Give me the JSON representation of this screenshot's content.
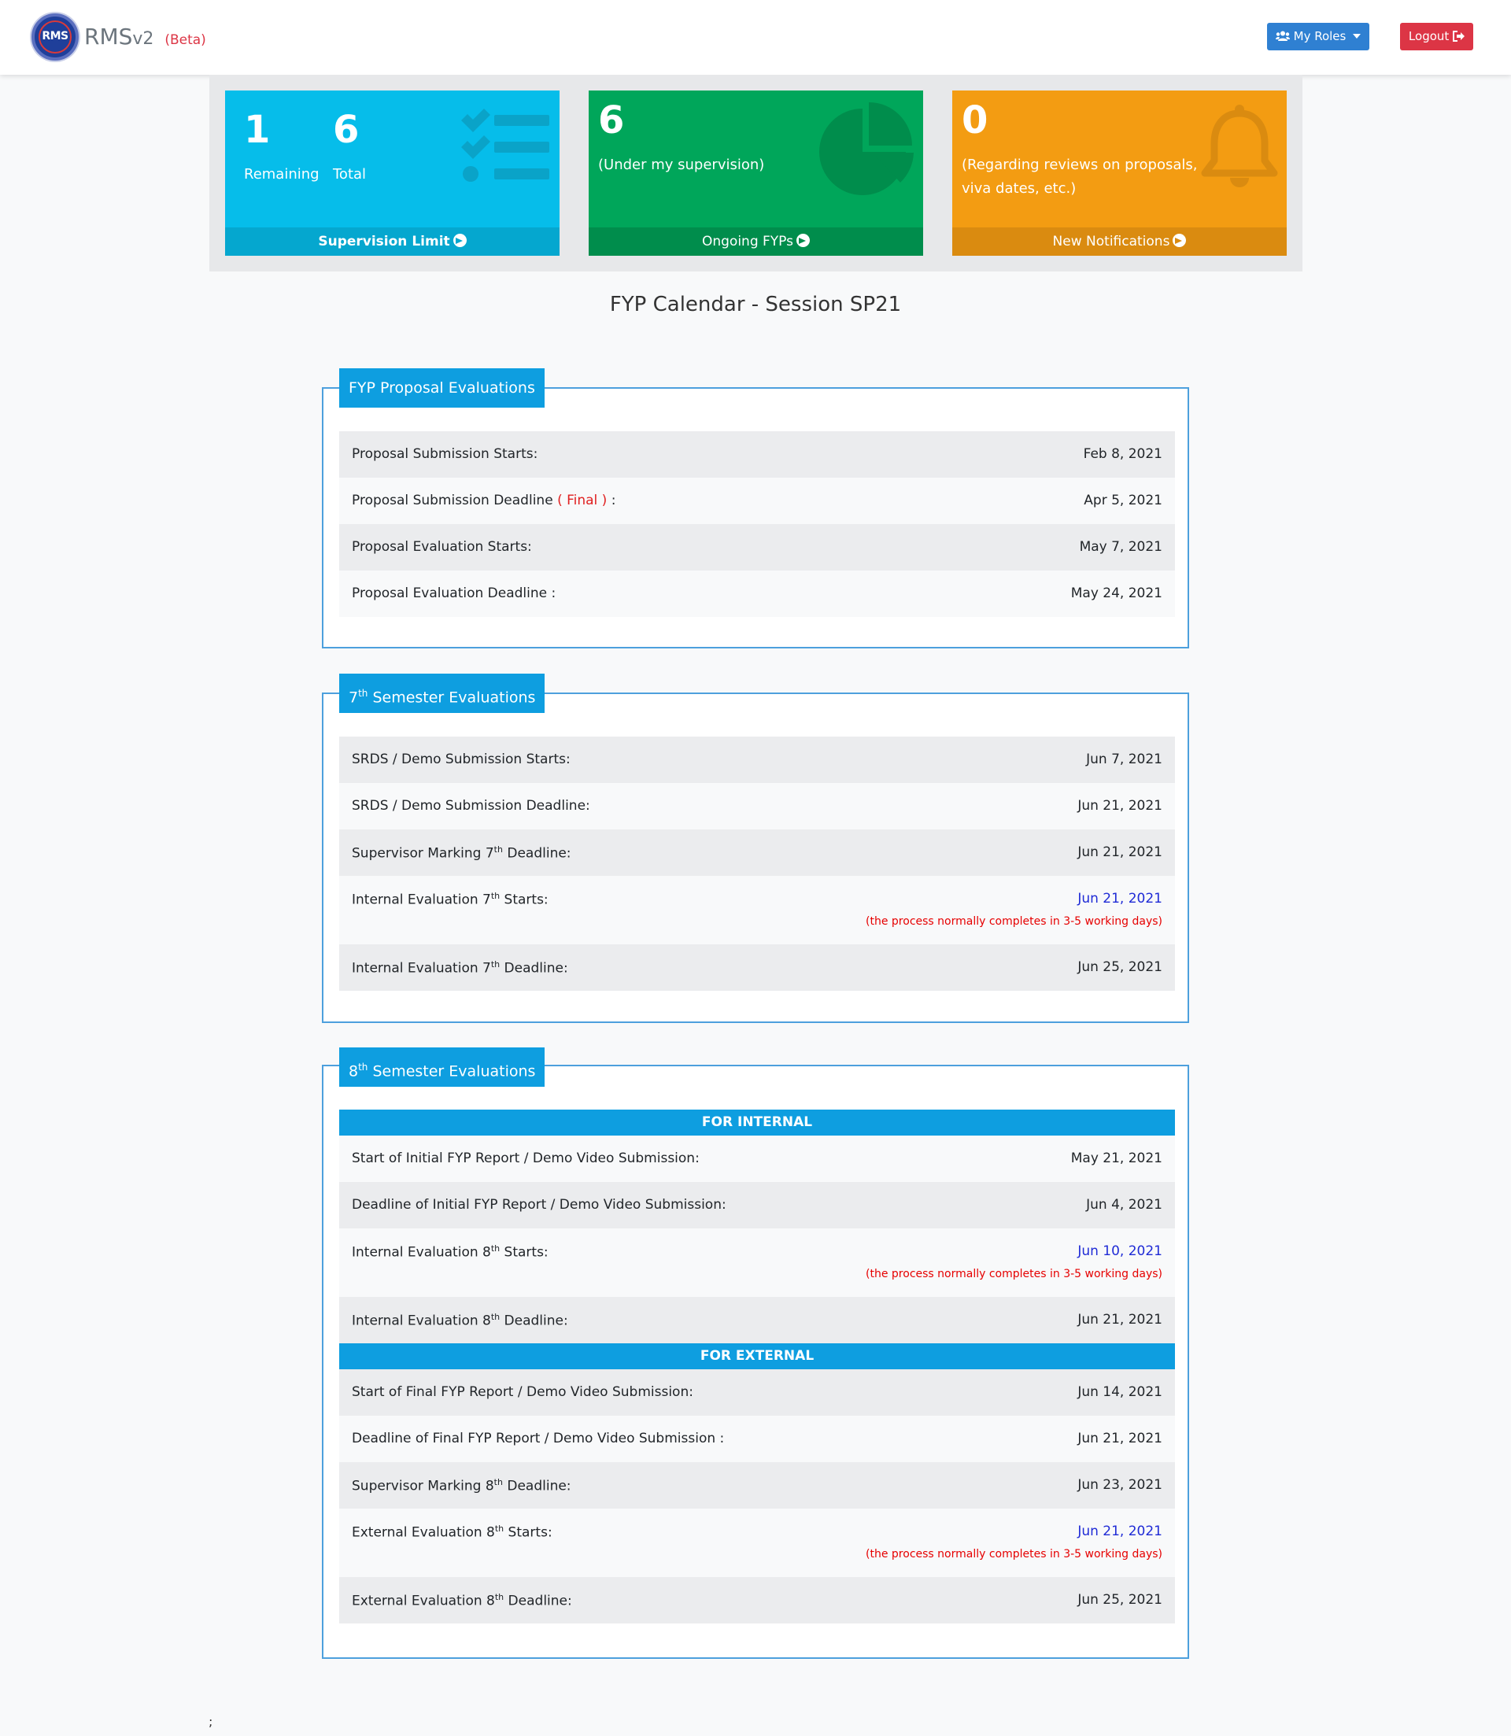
{
  "navbar": {
    "logo_text": "RMS",
    "brand": "RMS",
    "brand_version": "v2",
    "beta": "(Beta)",
    "my_roles": "My Roles",
    "logout": "Logout"
  },
  "cards": {
    "supervision": {
      "remaining_value": "1",
      "remaining_label": "Remaining",
      "total_value": "6",
      "total_label": "Total",
      "footer": "Supervision Limit",
      "icon": "tasks-icon",
      "color": "#06bdea"
    },
    "ongoing": {
      "value": "6",
      "label": "(Under my supervision)",
      "footer": "Ongoing FYPs",
      "icon": "pie-chart-icon",
      "color": "#00a65a"
    },
    "notifications": {
      "value": "0",
      "label_line1": "(Regarding reviews on proposals,",
      "label_line2": "viva dates, etc.)",
      "footer": "New Notifications",
      "icon": "bell-icon",
      "color": "#f39c12"
    }
  },
  "title": "FYP Calendar - Session SP21",
  "proposal": {
    "legend": "FYP Proposal Evaluations",
    "rows": [
      {
        "label": "Proposal Submission Starts:",
        "date": "Feb 8, 2021"
      },
      {
        "label": "Proposal Submission Deadline",
        "final": "( Final )",
        "suffix": " :",
        "date": "Apr 5, 2021"
      },
      {
        "label": "Proposal Evaluation Starts:",
        "date": "May 7, 2021"
      },
      {
        "label": "Proposal Evaluation Deadline :",
        "date": "May 24, 2021"
      }
    ]
  },
  "sem7": {
    "legend_num": "7",
    "legend_sup": "th",
    "legend_text": " Semester Evaluations",
    "rows": [
      {
        "label": "SRDS / Demo Submission Starts:",
        "date": "Jun 7, 2021"
      },
      {
        "label": "SRDS / Demo Submission Deadline:",
        "date": "Jun 21, 2021"
      },
      {
        "label_a": "Supervisor Marking 7",
        "sup": "th",
        "label_b": " Deadline:",
        "date": "Jun 21, 2021"
      },
      {
        "label_a": "Internal Evaluation 7",
        "sup": "th",
        "label_b": " Starts:",
        "date": "Jun 21, 2021",
        "note": "(the process normally completes in 3-5 working days)"
      },
      {
        "label_a": "Internal Evaluation 7",
        "sup": "th",
        "label_b": " Deadline:",
        "date": "Jun 25, 2021"
      }
    ]
  },
  "sem8": {
    "legend_num": "8",
    "legend_sup": "th",
    "legend_text": " Semester Evaluations",
    "internal_band": "FOR INTERNAL",
    "external_band": "FOR EXTERNAL",
    "internal_rows": [
      {
        "label": "Start of Initial FYP Report / Demo Video Submission:",
        "date": "May 21, 2021"
      },
      {
        "label": "Deadline of Initial FYP Report / Demo Video Submission:",
        "date": "Jun 4, 2021"
      },
      {
        "label_a": "Internal Evaluation 8",
        "sup": "th",
        "label_b": " Starts:",
        "date": "Jun 10, 2021",
        "note": "(the process normally completes in 3-5 working days)"
      },
      {
        "label_a": "Internal Evaluation 8",
        "sup": "th",
        "label_b": " Deadline:",
        "date": "Jun 21, 2021"
      }
    ],
    "external_rows": [
      {
        "label": "Start of Final FYP Report / Demo Video Submission:",
        "date": "Jun 14, 2021"
      },
      {
        "label": "Deadline of Final FYP Report / Demo Video Submission :",
        "date": "Jun 21, 2021"
      },
      {
        "label_a": "Supervisor Marking 8",
        "sup": "th",
        "label_b": " Deadline:",
        "date": "Jun 23, 2021"
      },
      {
        "label_a": "External Evaluation 8",
        "sup": "th",
        "label_b": " Starts:",
        "date": "Jun 21, 2021",
        "note": "(the process normally completes in 3-5 working days)"
      },
      {
        "label_a": "External Evaluation 8",
        "sup": "th",
        "label_b": " Deadline:",
        "date": "Jun 25, 2021"
      }
    ]
  },
  "footer_text": ";"
}
